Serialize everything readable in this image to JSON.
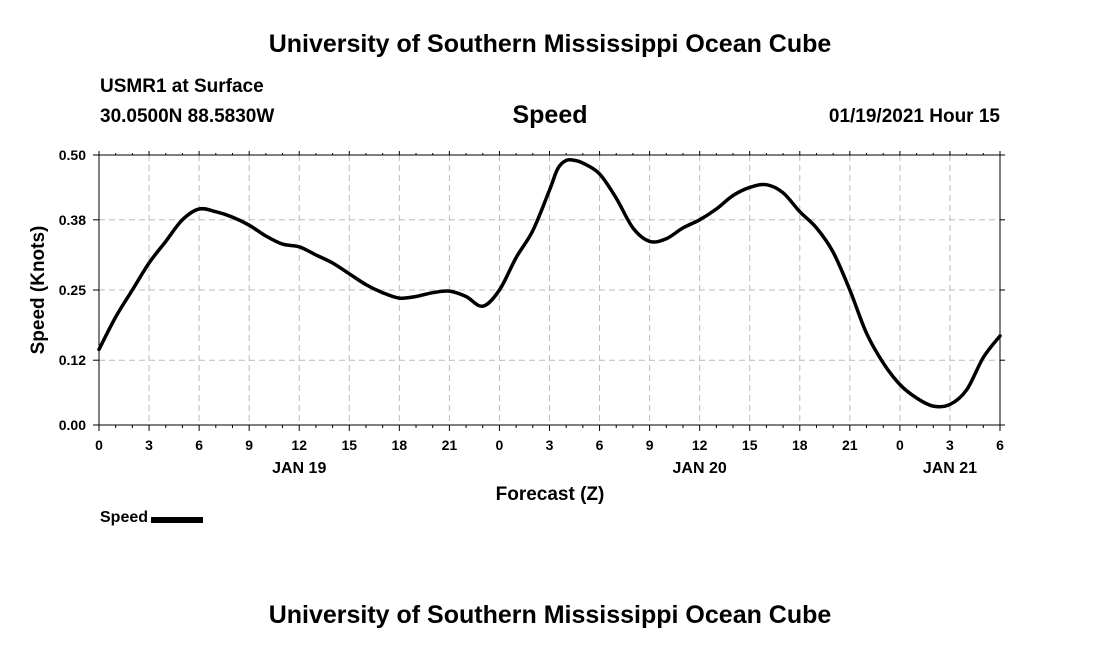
{
  "header": {
    "title": "University of Southern Mississippi Ocean Cube",
    "station": "USMR1 at Surface",
    "location": "30.0500N 88.5830W",
    "variable": "Speed",
    "datetime": "01/19/2021 Hour 15"
  },
  "footer": {
    "title": "University of Southern Mississippi Ocean Cube"
  },
  "legend": {
    "label": "Speed"
  },
  "colors": {
    "line": "#000000",
    "grid": "#bbbbbb",
    "background": "#ffffff"
  },
  "chart_data": {
    "type": "line",
    "xlabel": "Forecast (Z)",
    "ylabel": "Speed (Knots)",
    "xlim": [
      0,
      54
    ],
    "ylim": [
      0,
      0.5
    ],
    "y_ticks": [
      0.0,
      0.12,
      0.25,
      0.38,
      0.5
    ],
    "y_tick_labels": [
      "0.00",
      "0.12",
      "0.25",
      "0.38",
      "0.50"
    ],
    "x_ticks": [
      0,
      3,
      6,
      9,
      12,
      15,
      18,
      21,
      24,
      27,
      30,
      33,
      36,
      39,
      42,
      45,
      48,
      51,
      54
    ],
    "x_tick_labels": [
      "0",
      "3",
      "6",
      "9",
      "12",
      "15",
      "18",
      "21",
      "0",
      "3",
      "6",
      "9",
      "12",
      "15",
      "18",
      "21",
      "0",
      "3",
      "6"
    ],
    "day_labels": [
      {
        "label": "JAN 19",
        "x": 12
      },
      {
        "label": "JAN 20",
        "x": 36
      },
      {
        "label": "JAN 21",
        "x": 51
      }
    ],
    "grid": true,
    "series": [
      {
        "name": "Speed",
        "x": [
          0,
          1,
          2,
          3,
          4,
          5,
          6,
          7,
          8,
          9,
          10,
          11,
          12,
          13,
          14,
          15,
          16,
          17,
          18,
          19,
          20,
          21,
          22,
          23,
          24,
          25,
          26,
          27,
          27.5,
          28,
          28.5,
          29,
          30,
          31,
          32,
          33,
          34,
          35,
          36,
          37,
          38,
          39,
          40,
          41,
          42,
          43,
          44,
          45,
          46,
          47,
          48,
          49,
          50,
          51,
          52,
          53,
          54
        ],
        "values": [
          0.14,
          0.2,
          0.25,
          0.3,
          0.34,
          0.38,
          0.4,
          0.395,
          0.385,
          0.37,
          0.35,
          0.335,
          0.33,
          0.315,
          0.3,
          0.28,
          0.26,
          0.245,
          0.235,
          0.238,
          0.245,
          0.248,
          0.238,
          0.22,
          0.25,
          0.31,
          0.36,
          0.435,
          0.475,
          0.49,
          0.49,
          0.485,
          0.465,
          0.42,
          0.365,
          0.34,
          0.345,
          0.365,
          0.38,
          0.4,
          0.425,
          0.44,
          0.445,
          0.43,
          0.395,
          0.365,
          0.32,
          0.25,
          0.17,
          0.115,
          0.075,
          0.05,
          0.035,
          0.038,
          0.065,
          0.125,
          0.165
        ]
      }
    ]
  }
}
